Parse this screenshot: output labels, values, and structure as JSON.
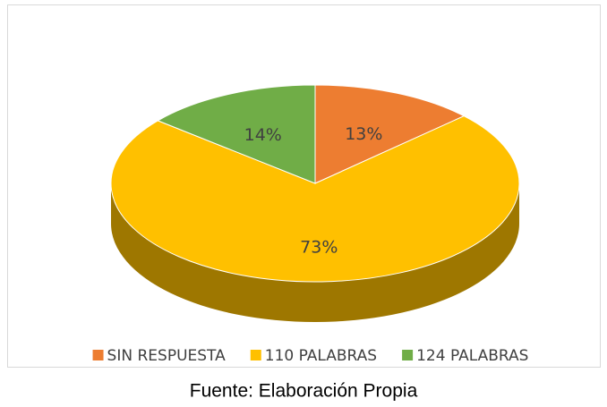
{
  "chart_data": {
    "type": "pie",
    "categories": [
      "SIN RESPUESTA",
      "110 PALABRAS",
      "124 PALABRAS"
    ],
    "values": [
      13,
      73,
      14
    ],
    "value_labels": [
      "13%",
      "73%",
      "14%"
    ],
    "colors": [
      "#ed7d31",
      "#ffc000",
      "#70ad47"
    ],
    "legend": "bottom"
  },
  "caption": "Fuente: Elaboración Propia"
}
